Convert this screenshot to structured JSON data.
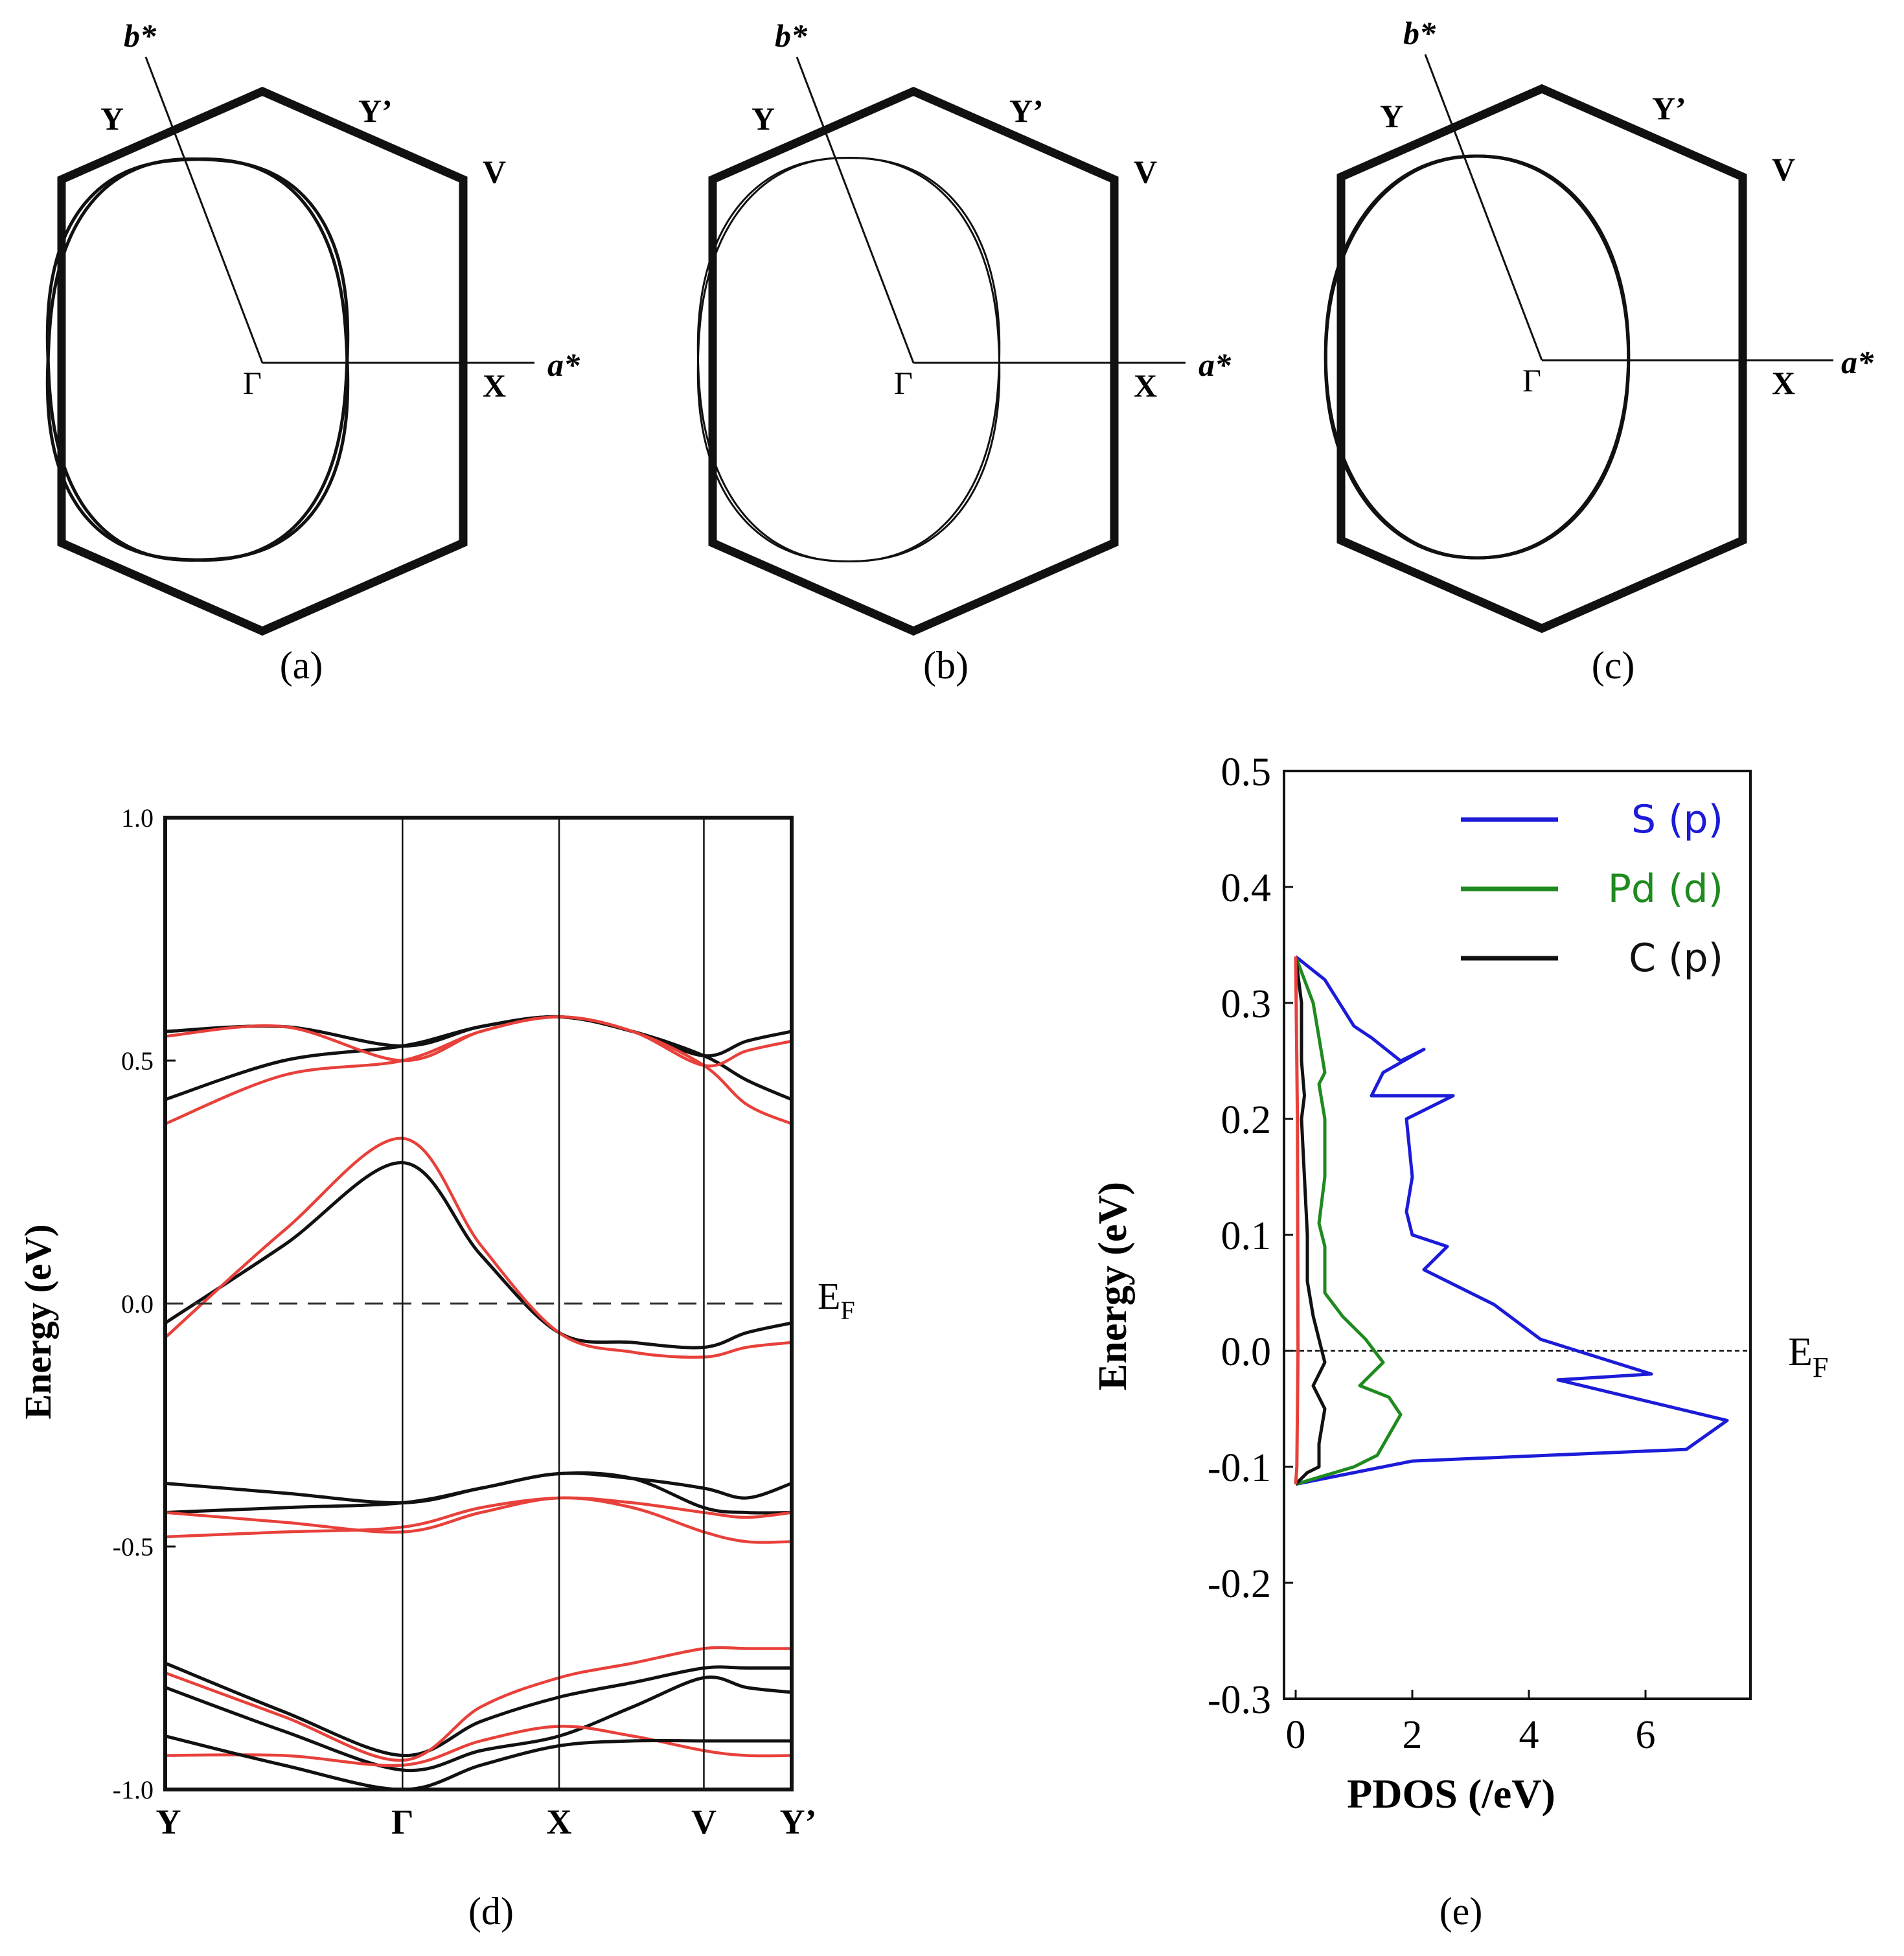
{
  "panel_labels": [
    "(a)",
    "(b)",
    "(c)",
    "(d)",
    "(e)"
  ],
  "chart_data": [
    {
      "id": "a",
      "type": "diagram",
      "title": "(a)",
      "axis_labels": {
        "a_star": "a*",
        "b_star": "b*"
      },
      "points": {
        "gamma": "Γ",
        "x": "X",
        "y": "Y",
        "y_prime": "Y’",
        "v": "V"
      },
      "fermi_surface": {
        "semi_axis_a": 0.72,
        "semi_axis_b": 0.98,
        "shape_exponent": 2.5,
        "tilt_deg": [
          10,
          -10
        ]
      }
    },
    {
      "id": "b",
      "type": "diagram",
      "title": "(b)",
      "axis_labels": {
        "a_star": "a*",
        "b_star": "b*"
      },
      "points": {
        "gamma": "Γ",
        "x": "X",
        "y": "Y",
        "y_prime": "Y’",
        "v": "V"
      },
      "fermi_surface": {
        "semi_axis_a": 0.72,
        "semi_axis_b": 0.98,
        "shape_exponent": 2.3,
        "tilt_deg": [
          7,
          -7
        ]
      }
    },
    {
      "id": "c",
      "type": "diagram",
      "title": "(c)",
      "axis_labels": {
        "a_star": "a*",
        "b_star": "b*"
      },
      "points": {
        "gamma": "Γ",
        "x": "X",
        "y": "Y",
        "y_prime": "Y’",
        "v": "V"
      },
      "fermi_surface": {
        "semi_axis_a": 0.72,
        "semi_axis_b": 0.97,
        "shape_exponent": 2.15,
        "tilt_deg": [
          3,
          -3
        ]
      }
    },
    {
      "id": "d",
      "type": "line",
      "title": "(d)",
      "ylabel": "Energy (eV)",
      "ylim": [
        -1.0,
        1.0
      ],
      "y_ticks": [
        1.0,
        0.5,
        0.0,
        -0.5,
        -1.0
      ],
      "y_tick_labels": [
        "1.0",
        "0.5",
        "0.0",
        "-0.5",
        "-1.0"
      ],
      "k_points": [
        "Y",
        "Γ",
        "X",
        "V",
        "Y’"
      ],
      "k_positions": [
        0,
        1,
        1.66,
        2.27,
        2.64
      ],
      "fermi_label": "E",
      "fermi_sub": "F",
      "fermi_level": 0.0,
      "x": [
        0,
        0.5,
        1,
        1.33,
        1.66,
        1.97,
        2.27,
        2.45,
        2.64
      ],
      "series": [
        {
          "name": "black",
          "color": "#111111",
          "values": [
            0.56,
            0.57,
            0.53,
            0.57,
            0.59,
            0.56,
            0.51,
            0.54,
            0.56
          ]
        },
        {
          "name": "black",
          "color": "#111111",
          "values": [
            0.42,
            0.5,
            0.53,
            0.57,
            0.59,
            0.56,
            0.51,
            0.46,
            0.42
          ]
        },
        {
          "name": "black",
          "color": "#111111",
          "values": [
            -0.04,
            0.12,
            0.29,
            0.1,
            -0.06,
            -0.08,
            -0.09,
            -0.06,
            -0.04
          ]
        },
        {
          "name": "black",
          "color": "#111111",
          "values": [
            -0.37,
            -0.39,
            -0.41,
            -0.38,
            -0.35,
            -0.36,
            -0.38,
            -0.4,
            -0.37
          ]
        },
        {
          "name": "black",
          "color": "#111111",
          "values": [
            -0.43,
            -0.42,
            -0.41,
            -0.38,
            -0.35,
            -0.36,
            -0.42,
            -0.43,
            -0.43
          ]
        },
        {
          "name": "black",
          "color": "#111111",
          "values": [
            -0.74,
            -0.84,
            -0.93,
            -0.86,
            -0.81,
            -0.78,
            -0.75,
            -0.75,
            -0.75
          ]
        },
        {
          "name": "black",
          "color": "#111111",
          "values": [
            -0.79,
            -0.88,
            -0.96,
            -0.92,
            -0.89,
            -0.83,
            -0.77,
            -0.79,
            -0.8
          ]
        },
        {
          "name": "red",
          "color": "#e8403a",
          "values": [
            0.55,
            0.57,
            0.5,
            0.56,
            0.59,
            0.56,
            0.49,
            0.52,
            0.54
          ]
        },
        {
          "name": "red",
          "color": "#e8403a",
          "values": [
            0.37,
            0.47,
            0.5,
            0.56,
            0.59,
            0.56,
            0.49,
            0.41,
            0.37
          ]
        },
        {
          "name": "red",
          "color": "#e8403a",
          "values": [
            -0.07,
            0.15,
            0.34,
            0.12,
            -0.06,
            -0.1,
            -0.11,
            -0.09,
            -0.08
          ]
        },
        {
          "name": "red",
          "color": "#e8403a",
          "values": [
            -0.43,
            -0.45,
            -0.47,
            -0.43,
            -0.4,
            -0.42,
            -0.47,
            -0.49,
            -0.49
          ]
        },
        {
          "name": "red",
          "color": "#e8403a",
          "values": [
            -0.48,
            -0.47,
            -0.46,
            -0.42,
            -0.4,
            -0.41,
            -0.43,
            -0.44,
            -0.43
          ]
        },
        {
          "name": "red",
          "color": "#e8403a",
          "values": [
            -0.76,
            -0.85,
            -0.94,
            -0.83,
            -0.77,
            -0.74,
            -0.71,
            -0.71,
            -0.71
          ]
        },
        {
          "name": "red",
          "color": "#e8403a",
          "values": [
            -0.93,
            -0.93,
            -0.95,
            -0.9,
            -0.87,
            -0.89,
            -0.92,
            -0.93,
            -0.93
          ]
        },
        {
          "name": "black",
          "color": "#111111",
          "values": [
            -0.89,
            -0.95,
            -1.0,
            -0.95,
            -0.91,
            -0.9,
            -0.9,
            -0.9,
            -0.9
          ]
        }
      ]
    },
    {
      "id": "e",
      "type": "line",
      "title": "(e)",
      "ylabel": "Energy (eV)",
      "xlabel": "PDOS (/eV)",
      "ylim": [
        -0.3,
        0.5
      ],
      "xlim": [
        -0.2,
        7.8
      ],
      "y_ticks": [
        0.5,
        0.4,
        0.3,
        0.2,
        0.1,
        0.0,
        -0.1,
        -0.2,
        -0.3
      ],
      "y_tick_labels": [
        "0.5",
        "0.4",
        "0.3",
        "0.2",
        "0.1",
        "0.0",
        "-0.1",
        "-0.2",
        "-0.3"
      ],
      "x_ticks": [
        0,
        2,
        4,
        6
      ],
      "x_tick_labels": [
        "0",
        "2",
        "4",
        "6"
      ],
      "fermi_label": "E",
      "fermi_sub": "F",
      "fermi_level": 0.0,
      "legend": {
        "position": "top-right"
      },
      "series": [
        {
          "name": "S (p)",
          "color": "#1b1bd8",
          "x": [
            0,
            0.5,
            1.0,
            1.3,
            1.8,
            2.2,
            1.5,
            1.3,
            2.7,
            1.9,
            2.0,
            1.9,
            2.0,
            2.6,
            2.2,
            3.4,
            4.2,
            6.1,
            4.5,
            7.4,
            6.7,
            2.0,
            0
          ],
          "y": [
            0.34,
            0.32,
            0.28,
            0.27,
            0.25,
            0.26,
            0.24,
            0.22,
            0.22,
            0.2,
            0.15,
            0.12,
            0.1,
            0.09,
            0.07,
            0.04,
            0.01,
            -0.02,
            -0.025,
            -0.06,
            -0.085,
            -0.095,
            -0.115
          ]
        },
        {
          "name": "Pd (d)",
          "color": "#1f8a1f",
          "x": [
            0,
            0.3,
            0.4,
            0.5,
            0.4,
            0.5,
            0.5,
            0.4,
            0.5,
            0.5,
            0.8,
            1.2,
            1.5,
            1.1,
            1.6,
            1.8,
            1.4,
            1.0,
            0
          ],
          "y": [
            0.34,
            0.3,
            0.27,
            0.24,
            0.23,
            0.2,
            0.15,
            0.11,
            0.09,
            0.05,
            0.03,
            0.01,
            -0.01,
            -0.03,
            -0.04,
            -0.055,
            -0.09,
            -0.1,
            -0.115
          ]
        },
        {
          "name": "C (p)",
          "color": "#111111",
          "x": [
            0,
            0.1,
            0.1,
            0.15,
            0.1,
            0.15,
            0.2,
            0.2,
            0.3,
            0.4,
            0.5,
            0.3,
            0.5,
            0.4,
            0.4,
            0.2,
            0
          ],
          "y": [
            0.34,
            0.3,
            0.25,
            0.22,
            0.2,
            0.15,
            0.1,
            0.06,
            0.03,
            0.01,
            -0.01,
            -0.03,
            -0.05,
            -0.08,
            -0.1,
            -0.105,
            -0.115
          ]
        },
        {
          "name": "red",
          "color": "#e8403a",
          "legend": false,
          "x": [
            0,
            0.03,
            0.04,
            0.03,
            0.02,
            0
          ],
          "y": [
            0.34,
            0.2,
            0.0,
            -0.05,
            -0.1,
            -0.115
          ]
        }
      ]
    }
  ]
}
